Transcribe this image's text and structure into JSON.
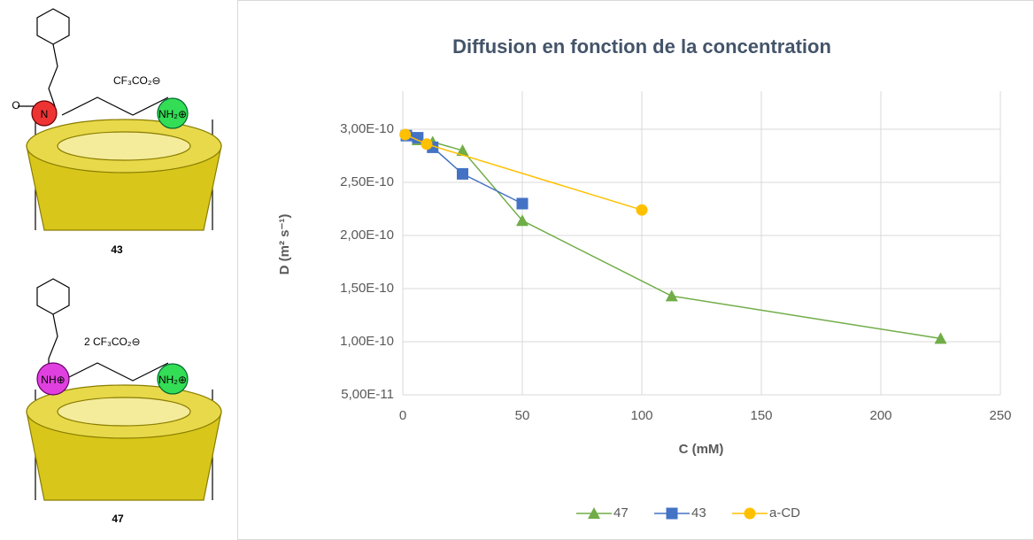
{
  "chart_data": {
    "type": "line",
    "title": "Diffusion en fonction de la concentration",
    "x_label": "C (mM)",
    "y_label": "D (m² s⁻¹)",
    "xlim": [
      0,
      250
    ],
    "xticks": [
      0,
      50,
      100,
      150,
      200,
      250
    ],
    "ylim": [
      5e-11,
      3.25e-10
    ],
    "yticks": [
      {
        "value": 5e-11,
        "label": "5,00E-11"
      },
      {
        "value": 1e-10,
        "label": "1,00E-10"
      },
      {
        "value": 1.5e-10,
        "label": "1,50E-10"
      },
      {
        "value": 2e-10,
        "label": "2,00E-10"
      },
      {
        "value": 2.5e-10,
        "label": "2,50E-10"
      },
      {
        "value": 3e-10,
        "label": "3,00E-10"
      }
    ],
    "grid": true,
    "legend": "bottom",
    "series": [
      {
        "name": "47",
        "color": "#70ad47",
        "marker": "triangle",
        "x": [
          6.25,
          12.5,
          25,
          50,
          112.5,
          225
        ],
        "values": [
          2.9e-10,
          2.88e-10,
          2.8e-10,
          2.14e-10,
          1.43e-10,
          1.03e-10
        ]
      },
      {
        "name": "43",
        "color": "#4472c4",
        "marker": "square",
        "x": [
          1.5,
          6.25,
          12.5,
          25,
          50
        ],
        "values": [
          2.94e-10,
          2.92e-10,
          2.83e-10,
          2.58e-10,
          2.3e-10
        ]
      },
      {
        "name": "a-CD",
        "color": "#ffc000",
        "marker": "circle",
        "x": [
          1,
          10,
          100
        ],
        "values": [
          2.95e-10,
          2.86e-10,
          2.24e-10
        ]
      }
    ]
  },
  "molecules": [
    {
      "label": "43",
      "counterion": "CF₃CO₂⊖",
      "left_group": "N",
      "right_group": "NH₂⊕",
      "carbonyl": "O"
    },
    {
      "label": "47",
      "counterion": "2 CF₃CO₂⊖",
      "left_group": "NH⊕",
      "right_group": "NH₂⊕"
    }
  ]
}
